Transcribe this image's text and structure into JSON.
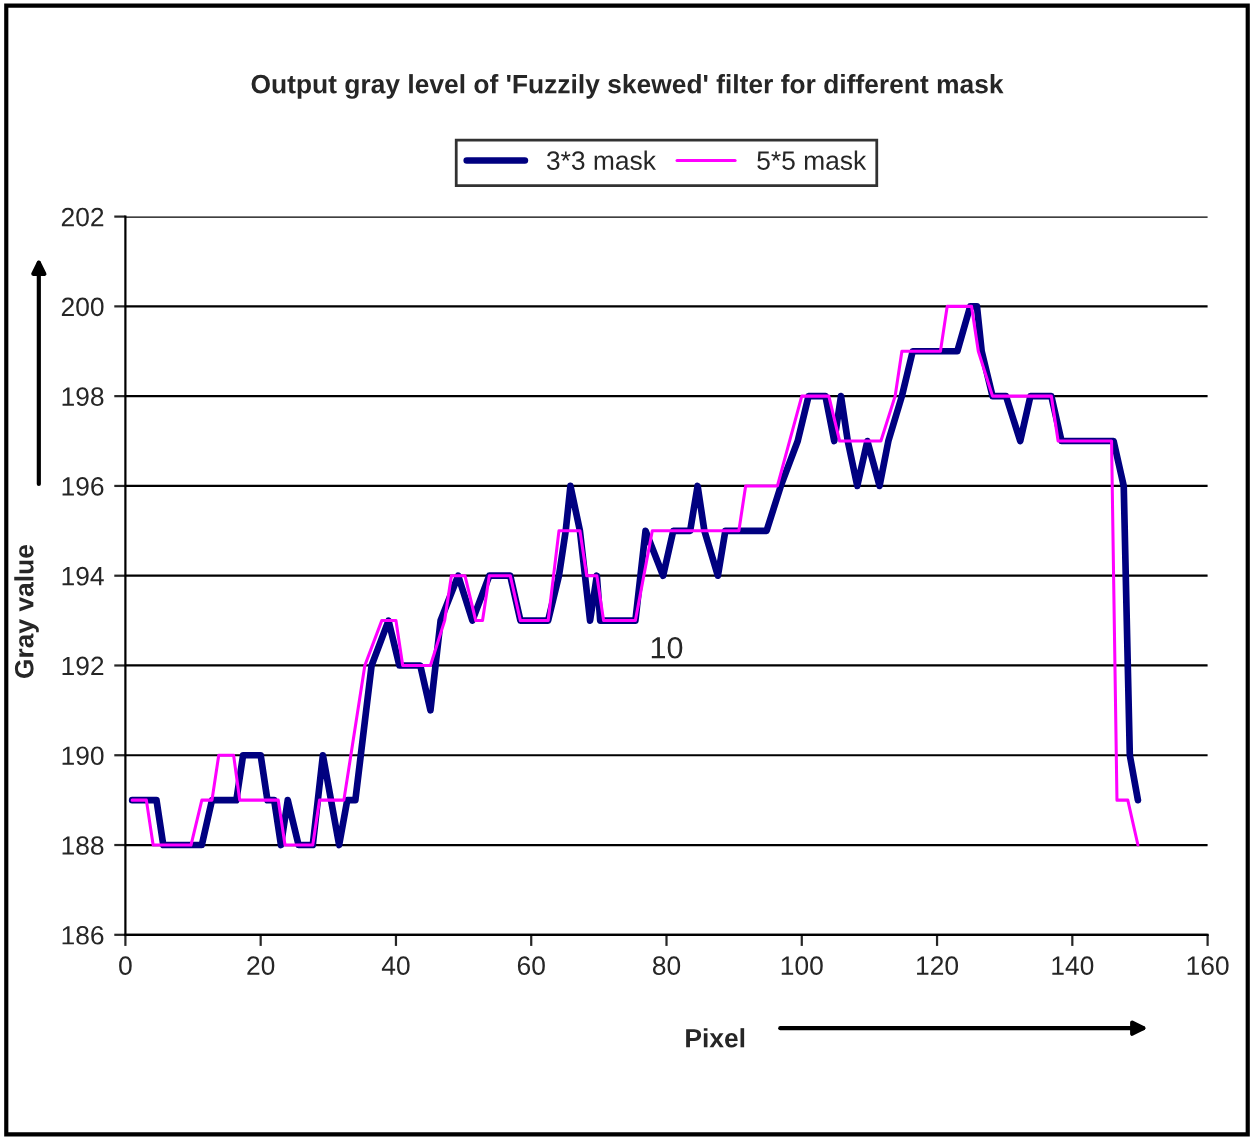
{
  "chart_data": {
    "type": "line",
    "title": "Output gray level of 'Fuzzily skewed' filter for different mask",
    "xlabel": "Pixel",
    "ylabel": "Gray value",
    "xlim": [
      0,
      160
    ],
    "xticks": [
      0,
      20,
      40,
      60,
      80,
      100,
      120,
      140,
      160
    ],
    "ylim": [
      186,
      202
    ],
    "yticks": [
      186,
      188,
      190,
      192,
      194,
      196,
      198,
      200,
      202
    ],
    "grid": "y",
    "legend": "top",
    "marker": "none",
    "line_style": "solid",
    "annotations": [
      "10"
    ],
    "series": [
      {
        "name": "3*3 mask",
        "color": "#000080",
        "x": [
          1,
          4.6,
          5.6,
          11.3,
          12.8,
          16.4,
          17.4,
          20,
          21,
          22,
          23,
          24,
          25.6,
          27.7,
          29.2,
          31.6,
          32.8,
          34,
          36.4,
          38.9,
          40.5,
          43.6,
          45.1,
          46.6,
          49.2,
          51.3,
          53.8,
          56.9,
          58.4,
          62.5,
          64.1,
          65.1,
          65.8,
          67.2,
          68.7,
          69.7,
          70.2,
          75.4,
          76.9,
          79.5,
          81,
          83.5,
          84.6,
          85.6,
          87.6,
          88.7,
          94.8,
          96.9,
          99.4,
          101,
          103.5,
          104.8,
          105.8,
          106.8,
          108.2,
          109.7,
          111.5,
          112.8,
          114.8,
          116.4,
          123,
          124.9,
          125.9,
          126.6,
          128.2,
          130.2,
          132.3,
          133.8,
          136.9,
          138.4,
          146.1,
          147.6,
          148.5,
          149.7
        ],
        "values": [
          189,
          189,
          188,
          188,
          189,
          189,
          190,
          190,
          189,
          189,
          188,
          189,
          188,
          188,
          190,
          188,
          189,
          189,
          192,
          193,
          192,
          192,
          191,
          193,
          194,
          193,
          194,
          194,
          193,
          193,
          194,
          195,
          196,
          195,
          193,
          194,
          193,
          193,
          195,
          194,
          195,
          195,
          196,
          195,
          194,
          195,
          195,
          196,
          197,
          198,
          198,
          197,
          198,
          197,
          196,
          197,
          196,
          197,
          198,
          199,
          199,
          200,
          200,
          199,
          198,
          198,
          197,
          198,
          198,
          197,
          197,
          196,
          190,
          189
        ]
      },
      {
        "name": "5*5 mask",
        "color": "#ff00ff",
        "x": [
          1,
          3.1,
          4.1,
          9.7,
          11.3,
          12.8,
          13.8,
          16,
          16.9,
          22.6,
          23.6,
          27.7,
          28.7,
          32.3,
          35.4,
          37.9,
          40,
          41,
          45.1,
          47.2,
          48.2,
          50.2,
          51.8,
          52.8,
          53.8,
          56.9,
          58.4,
          62.5,
          64.1,
          67.2,
          68.2,
          69.7,
          70.7,
          75.4,
          77.9,
          90.7,
          91.7,
          96.4,
          100,
          104,
          105.6,
          111.7,
          113.8,
          114.8,
          120.5,
          121.5,
          125.1,
          126.1,
          128.2,
          136.9,
          137.9,
          145.8,
          146.6,
          148.2,
          149.7
        ],
        "values": [
          189,
          189,
          188,
          188,
          189,
          189,
          190,
          190,
          189,
          189,
          188,
          188,
          189,
          189,
          192,
          193,
          193,
          192,
          192,
          193,
          194,
          194,
          193,
          193,
          194,
          194,
          193,
          193,
          195,
          195,
          194,
          194,
          193,
          193,
          195,
          195,
          196,
          196,
          198,
          198,
          197,
          197,
          198,
          199,
          199,
          200,
          200,
          199,
          198,
          198,
          197,
          197,
          189,
          189,
          188
        ]
      }
    ]
  }
}
